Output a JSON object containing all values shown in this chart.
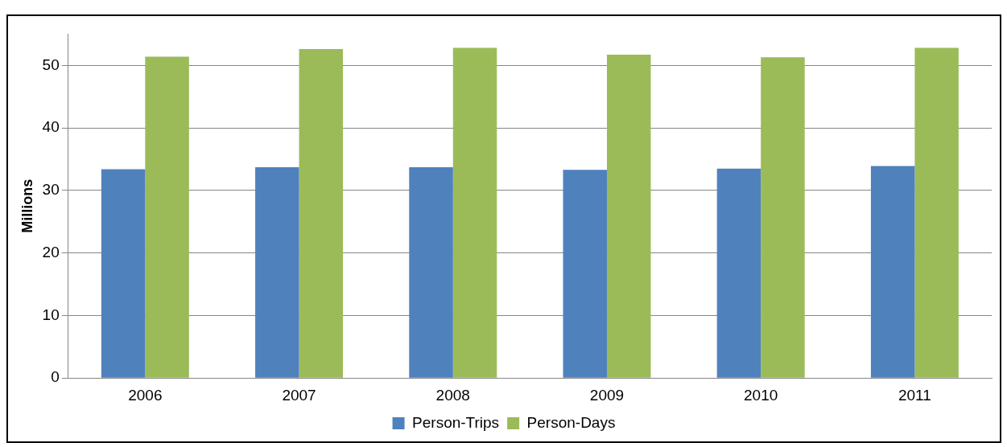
{
  "chart_data": {
    "type": "bar",
    "ylabel": "Millions",
    "categories": [
      "2006",
      "2007",
      "2008",
      "2009",
      "2010",
      "2011"
    ],
    "series": [
      {
        "name": "Person-Trips",
        "color": "#4f81bd",
        "values": [
          33.4,
          33.7,
          33.7,
          33.3,
          33.5,
          33.9
        ]
      },
      {
        "name": "Person-Days",
        "color": "#9bbb59",
        "values": [
          51.4,
          52.6,
          52.8,
          51.7,
          51.3,
          52.8
        ]
      }
    ],
    "ylim": [
      0,
      55
    ],
    "yticks": [
      0,
      10,
      20,
      30,
      40,
      50
    ],
    "grid": "y",
    "legend": "bottom"
  }
}
